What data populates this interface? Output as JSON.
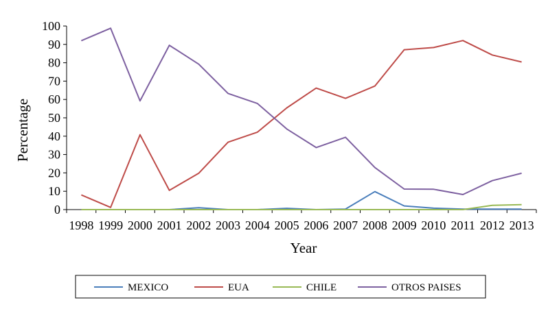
{
  "chart_data": {
    "type": "line",
    "title": "",
    "xlabel": "Year",
    "ylabel": "Percentage",
    "ylim": [
      0,
      100
    ],
    "yticks": [
      0,
      10,
      20,
      30,
      40,
      50,
      60,
      70,
      80,
      90,
      100
    ],
    "categories": [
      "1998",
      "1999",
      "2000",
      "2001",
      "2002",
      "2003",
      "2004",
      "2005",
      "2006",
      "2007",
      "2008",
      "2009",
      "2010",
      "2011",
      "2012",
      "2013"
    ],
    "grid": false,
    "legend_position": "bottom",
    "series": [
      {
        "name": "MEXICO",
        "color": "#4a7ebb",
        "values": [
          0,
          0,
          0,
          0,
          1,
          0,
          0,
          0.7,
          0,
          0.3,
          9.8,
          2,
          0.8,
          0.3,
          0.3,
          0.3
        ]
      },
      {
        "name": "EUA",
        "color": "#be4b48",
        "values": [
          8,
          1.2,
          40.8,
          10.5,
          19.8,
          36.7,
          42.2,
          55.4,
          66.2,
          60.6,
          67.3,
          87.1,
          88.3,
          92.1,
          84.2,
          80.4
        ]
      },
      {
        "name": "CHILE",
        "color": "#98b954",
        "values": [
          0,
          0,
          0,
          0,
          0,
          0,
          0,
          0,
          0,
          0,
          0,
          0,
          0,
          0,
          2.3,
          2.7
        ]
      },
      {
        "name": "OTROS PAISES",
        "color": "#7d60a0",
        "values": [
          92,
          98.8,
          59.2,
          89.5,
          79.2,
          63.3,
          57.8,
          43.9,
          33.8,
          39.4,
          22.9,
          11.2,
          11.1,
          8.2,
          15.8,
          19.8
        ]
      }
    ]
  }
}
